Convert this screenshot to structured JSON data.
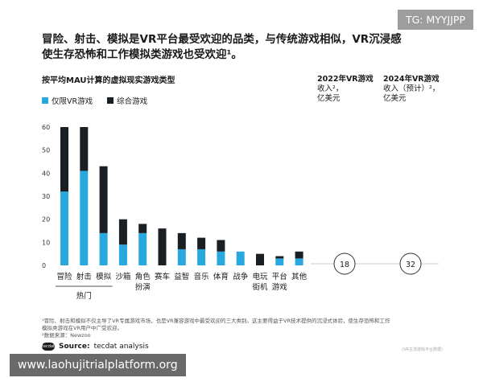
{
  "page": {
    "headline_line1": "冒险、射击、模拟是VR平台最受欢迎的品类，与传统游戏相似，VR沉浸感",
    "headline_line2": "使生存恐怖和工作模拟类游戏也受欢迎¹。",
    "footnote_line1": "¹冒险、射击和模拟不仅主导了VR专属游戏市场，也是VR兼容游戏中最受欢迎的三大类别。这主要得益于VR技术提供的沉浸式体验，使生存恐怖和工作",
    "footnote_line2": "模拟类游戏在VR用户中广受欢迎。",
    "footnote_line3": "²数据来源：Newzoo",
    "source_label": "Source:",
    "source_value": "tecdat analysis",
    "source_logo": "tecdat",
    "corner_note": "(VR主流游戏平台数据)"
  },
  "watermarks": {
    "top": "TG: MYYJJPP",
    "bottom": "www.laohujitrialplatform.org"
  },
  "colors": {
    "vr_only": "#29a8e0",
    "integrated": "#1a1f24",
    "axis": "#cccccc",
    "circle": "#333333"
  },
  "chart_data": {
    "type": "bar",
    "stacked": true,
    "title": "按平均MAU计算的虚拟现实游戏类型",
    "categories": [
      "冒险",
      "射击",
      "模拟",
      "沙箱",
      "角色扮演",
      "赛车",
      "益智",
      "音乐",
      "体育",
      "战争",
      "电玩街机",
      "平台游戏",
      "其他"
    ],
    "category_lines": [
      [
        "冒险"
      ],
      [
        "射击"
      ],
      [
        "模拟"
      ],
      [
        "沙箱"
      ],
      [
        "角色",
        "扮演"
      ],
      [
        "赛车"
      ],
      [
        "益智"
      ],
      [
        "音乐"
      ],
      [
        "体育"
      ],
      [
        "战争"
      ],
      [
        "电玩",
        "街机"
      ],
      [
        "平台",
        "游戏"
      ],
      [
        "其他"
      ]
    ],
    "series": [
      {
        "name": "仅限VR游戏",
        "values": [
          32,
          41,
          14,
          9,
          14,
          0,
          7,
          7,
          6,
          6,
          0,
          3,
          3
        ]
      },
      {
        "name": "综合游戏",
        "values": [
          28,
          19,
          29,
          11,
          4,
          16,
          7,
          5,
          5,
          0,
          5,
          1,
          3
        ]
      }
    ],
    "yticks": [
      0,
      10,
      20,
      30,
      40,
      50,
      60
    ],
    "ylim": [
      0,
      63
    ],
    "group_label": "热门",
    "group_categories": [
      "冒险",
      "射击",
      "模拟"
    ],
    "summary_columns": [
      {
        "line1": "2022年VR游戏",
        "line2": "收入²，",
        "line3": "亿美元",
        "value": "18"
      },
      {
        "line1": "2024年VR游戏",
        "line2": "收入（预计）²，",
        "line3": "亿美元",
        "value": "32"
      }
    ]
  }
}
